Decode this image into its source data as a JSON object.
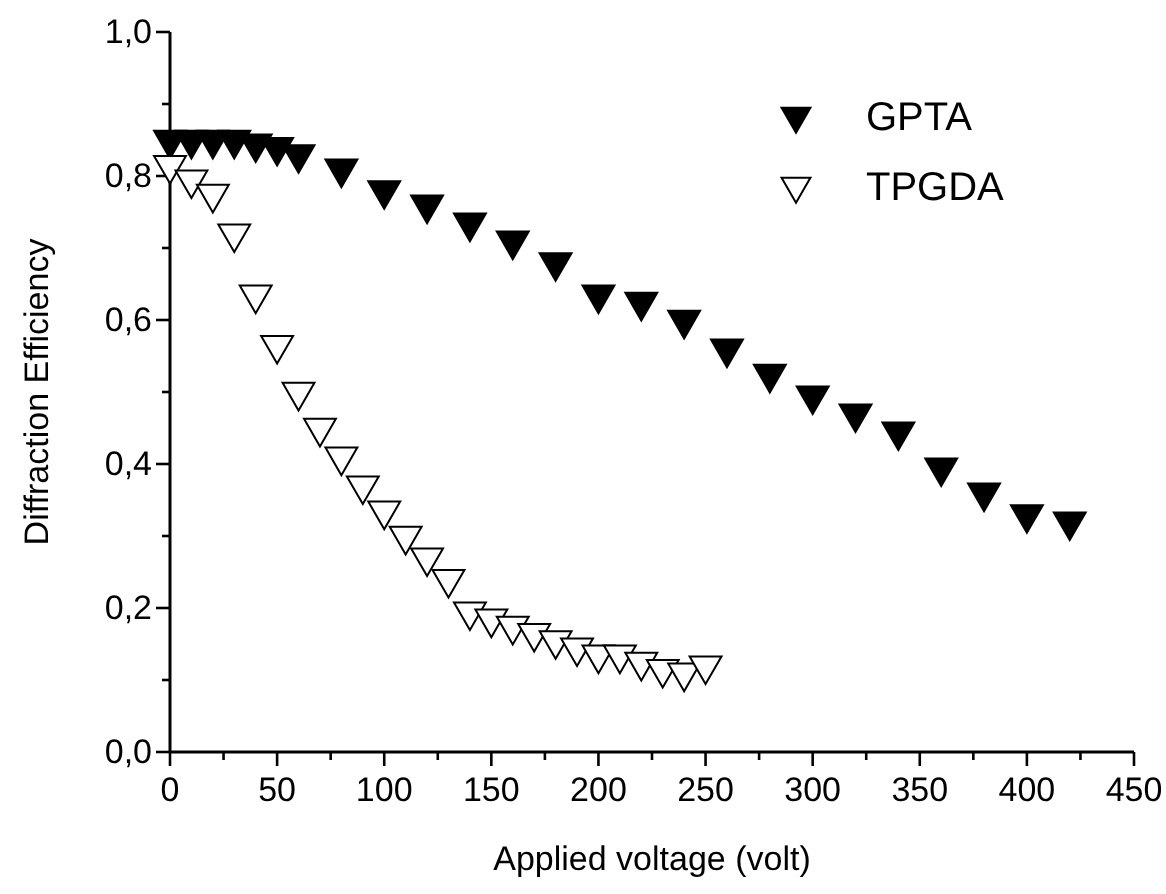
{
  "chart_data": {
    "type": "scatter",
    "xlabel": "Applied voltage (volt)",
    "ylabel": "Diffraction Efficiency",
    "xlim": [
      0,
      450
    ],
    "ylim": [
      0,
      1
    ],
    "xticks": [
      0,
      {
        "value": 25,
        "label": null
      },
      50,
      {
        "value": 75,
        "label": null
      },
      100,
      {
        "value": 125,
        "label": null
      },
      150,
      {
        "value": 175,
        "label": null
      },
      200,
      {
        "value": 225,
        "label": null
      },
      250,
      {
        "value": 275,
        "label": null
      },
      300,
      {
        "value": 325,
        "label": null
      },
      350,
      {
        "value": 375,
        "label": null
      },
      400,
      {
        "value": 425,
        "label": null
      },
      450
    ],
    "yticks": [
      {
        "value": 0,
        "label": "0,0"
      },
      {
        "value": 0.1,
        "label": null
      },
      {
        "value": 0.2,
        "label": "0,2"
      },
      {
        "value": 0.3,
        "label": null
      },
      {
        "value": 0.4,
        "label": "0,4"
      },
      {
        "value": 0.5,
        "label": null
      },
      {
        "value": 0.6,
        "label": "0,6"
      },
      {
        "value": 0.7,
        "label": null
      },
      {
        "value": 0.8,
        "label": "0,8"
      },
      {
        "value": 0.9,
        "label": null
      },
      {
        "value": 1,
        "label": "1,0"
      }
    ],
    "marker": "triangle",
    "legend": "top right",
    "grid": false,
    "series": [
      {
        "name": "GPTA",
        "color": "#000000",
        "x": [
          0,
          10,
          20,
          30,
          40,
          50,
          60,
          80,
          100,
          120,
          140,
          160,
          180,
          200,
          220,
          240,
          260,
          280,
          300,
          320,
          340,
          360,
          380,
          400,
          420
        ],
        "values": [
          0.85,
          0.85,
          0.85,
          0.85,
          0.845,
          0.84,
          0.83,
          0.81,
          0.78,
          0.76,
          0.735,
          0.71,
          0.68,
          0.635,
          0.625,
          0.6,
          0.56,
          0.525,
          0.495,
          0.47,
          0.445,
          0.395,
          0.36,
          0.33,
          0.32
        ]
      },
      {
        "name": "TPGDA",
        "color": "#ffffff",
        "x": [
          0,
          10,
          20,
          30,
          40,
          50,
          60,
          70,
          80,
          90,
          100,
          110,
          120,
          130,
          140,
          150,
          160,
          170,
          180,
          190,
          200,
          210,
          220,
          230,
          240,
          250
        ],
        "values": [
          0.815,
          0.795,
          0.775,
          0.72,
          0.635,
          0.565,
          0.5,
          0.45,
          0.41,
          0.37,
          0.335,
          0.3,
          0.27,
          0.24,
          0.195,
          0.185,
          0.175,
          0.165,
          0.155,
          0.145,
          0.135,
          0.135,
          0.125,
          0.115,
          0.11,
          0.12
        ]
      }
    ]
  }
}
